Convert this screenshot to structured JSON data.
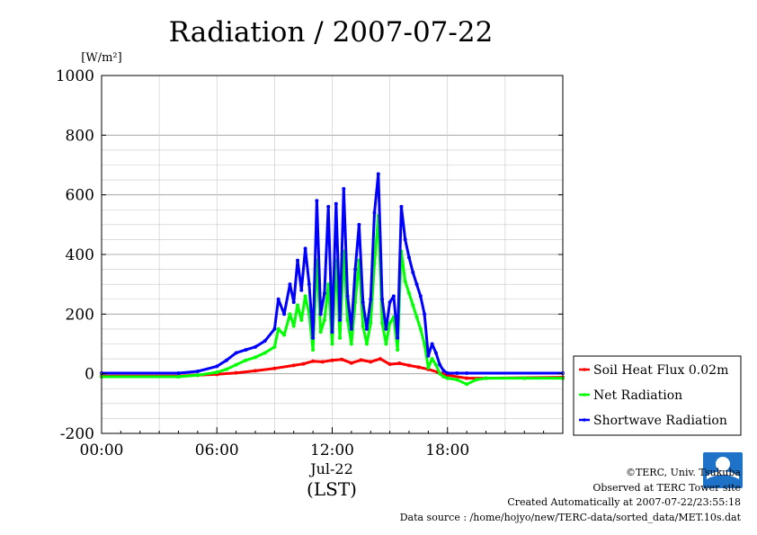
{
  "chart_data": {
    "type": "line",
    "title": "Radiation / 2007-07-22",
    "ylabel": "[W/m²]",
    "xlabel": "(LST)",
    "x_tick_labels": [
      "00:00",
      "06:00",
      "12:00",
      "18:00"
    ],
    "x_date_label": "Jul-22",
    "ylim": [
      -200,
      1000
    ],
    "y_ticks": [
      -200,
      0,
      200,
      400,
      600,
      800,
      1000
    ],
    "xlim_hours": [
      0,
      24
    ],
    "grid": true,
    "legend_position": "right",
    "series": [
      {
        "name": "Soil Heat Flux 0.02m",
        "color": "#ff0000",
        "x": [
          0,
          4,
          5,
          6,
          7,
          8,
          9,
          10,
          10.5,
          11,
          11.5,
          12,
          12.5,
          13,
          13.5,
          14,
          14.5,
          15,
          15.5,
          16,
          16.5,
          17,
          17.5,
          18,
          19,
          20,
          24
        ],
        "values": [
          -8,
          -8,
          -5,
          -2,
          3,
          10,
          18,
          28,
          33,
          42,
          40,
          45,
          48,
          36,
          46,
          40,
          50,
          32,
          35,
          28,
          22,
          15,
          5,
          -5,
          -15,
          -15,
          -12
        ]
      },
      {
        "name": "Net Radiation",
        "color": "#00ff00",
        "x": [
          0,
          4,
          5,
          6,
          6.5,
          7,
          7.5,
          8,
          8.5,
          9,
          9.2,
          9.5,
          9.8,
          10,
          10.2,
          10.4,
          10.6,
          10.8,
          11,
          11.2,
          11.4,
          11.6,
          11.8,
          12,
          12.2,
          12.4,
          12.6,
          12.8,
          13,
          13.2,
          13.4,
          13.6,
          13.8,
          14,
          14.2,
          14.4,
          14.6,
          14.8,
          15,
          15.2,
          15.4,
          15.6,
          15.8,
          16,
          16.2,
          16.4,
          16.6,
          16.8,
          17,
          17.2,
          17.4,
          17.6,
          17.8,
          18,
          18.5,
          19,
          19.5,
          20,
          22,
          24
        ],
        "values": [
          -10,
          -10,
          -5,
          5,
          15,
          30,
          45,
          55,
          70,
          90,
          150,
          130,
          200,
          160,
          230,
          180,
          260,
          200,
          80,
          380,
          140,
          180,
          300,
          100,
          380,
          120,
          410,
          180,
          100,
          240,
          380,
          160,
          100,
          170,
          370,
          530,
          170,
          100,
          170,
          190,
          80,
          410,
          310,
          270,
          230,
          190,
          150,
          100,
          20,
          50,
          30,
          0,
          -10,
          -15,
          -20,
          -35,
          -20,
          -15,
          -15,
          -15
        ]
      },
      {
        "name": "Shortwave Radiation",
        "color": "#0000ff",
        "x": [
          0,
          4,
          5,
          6,
          6.5,
          7,
          7.5,
          8,
          8.5,
          9,
          9.2,
          9.5,
          9.8,
          10,
          10.2,
          10.4,
          10.6,
          10.8,
          11,
          11.2,
          11.4,
          11.6,
          11.8,
          12,
          12.2,
          12.4,
          12.6,
          12.8,
          13,
          13.2,
          13.4,
          13.6,
          13.8,
          14,
          14.2,
          14.4,
          14.6,
          14.8,
          15,
          15.2,
          15.4,
          15.6,
          15.8,
          16,
          16.2,
          16.4,
          16.6,
          16.8,
          17,
          17.2,
          17.4,
          17.6,
          17.8,
          18,
          18.5,
          19,
          24
        ],
        "values": [
          2,
          2,
          8,
          25,
          45,
          70,
          80,
          90,
          110,
          150,
          250,
          200,
          300,
          240,
          380,
          280,
          420,
          300,
          120,
          580,
          200,
          270,
          560,
          140,
          570,
          180,
          620,
          260,
          150,
          350,
          500,
          240,
          150,
          250,
          540,
          670,
          250,
          150,
          240,
          260,
          120,
          560,
          450,
          390,
          340,
          300,
          260,
          200,
          60,
          100,
          70,
          30,
          10,
          2,
          2,
          2,
          2
        ]
      }
    ]
  },
  "credits": {
    "copyright": "©TERC, Univ. Tsukuba",
    "observed": "Observed at TERC Tower site",
    "created": "Created Automatically at 2007-07-22/23:55:18",
    "source": "Data source : /home/hojyo/new/TERC-data/sorted_data/MET.10s.dat"
  },
  "logo": {
    "text": "TERC",
    "color": "#1e73c8"
  }
}
